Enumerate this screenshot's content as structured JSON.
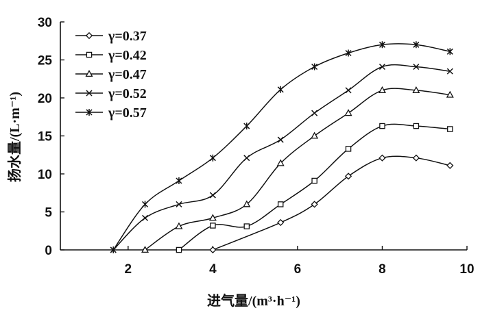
{
  "chart_data": {
    "type": "line",
    "xlabel": "进气量/(m³·h⁻¹)",
    "ylabel": "扬水量/(L·m⁻¹)",
    "xlim": [
      0.4,
      10
    ],
    "ylim": [
      0,
      30
    ],
    "xticks": [
      2,
      4,
      6,
      8,
      10
    ],
    "yticks": [
      0,
      5,
      10,
      15,
      20,
      25,
      30
    ],
    "grid": false,
    "legend_position": "top-left",
    "series": [
      {
        "name": "γ=0.37",
        "marker": "diamond",
        "points": [
          [
            4.0,
            0
          ],
          [
            5.6,
            3.6
          ],
          [
            6.4,
            6.0
          ],
          [
            7.2,
            9.7
          ],
          [
            8.0,
            12.1
          ],
          [
            8.8,
            12.1
          ],
          [
            9.6,
            11.1
          ]
        ]
      },
      {
        "name": "γ=0.42",
        "marker": "square",
        "points": [
          [
            3.2,
            0
          ],
          [
            4.0,
            3.2
          ],
          [
            4.8,
            3.1
          ],
          [
            5.6,
            6.0
          ],
          [
            6.4,
            9.1
          ],
          [
            7.2,
            13.3
          ],
          [
            8.0,
            16.3
          ],
          [
            8.8,
            16.3
          ],
          [
            9.6,
            15.9
          ]
        ]
      },
      {
        "name": "γ=0.47",
        "marker": "triangle",
        "points": [
          [
            2.4,
            0
          ],
          [
            3.2,
            3.1
          ],
          [
            4.0,
            4.2
          ],
          [
            4.8,
            6.0
          ],
          [
            5.6,
            11.4
          ],
          [
            6.4,
            15.0
          ],
          [
            7.2,
            18.0
          ],
          [
            8.0,
            21.0
          ],
          [
            8.8,
            21.0
          ],
          [
            9.6,
            20.4
          ]
        ]
      },
      {
        "name": "γ=0.52",
        "marker": "x",
        "points": [
          [
            1.65,
            0
          ],
          [
            2.4,
            4.2
          ],
          [
            3.2,
            6.0
          ],
          [
            4.0,
            7.2
          ],
          [
            4.8,
            12.1
          ],
          [
            5.6,
            14.5
          ],
          [
            6.4,
            18.0
          ],
          [
            7.2,
            21.0
          ],
          [
            8.0,
            24.1
          ],
          [
            8.8,
            24.1
          ],
          [
            9.6,
            23.5
          ]
        ]
      },
      {
        "name": "γ=0.57",
        "marker": "asterisk",
        "points": [
          [
            1.65,
            0
          ],
          [
            2.4,
            6.0
          ],
          [
            3.2,
            9.1
          ],
          [
            4.0,
            12.1
          ],
          [
            4.8,
            16.3
          ],
          [
            5.6,
            21.1
          ],
          [
            6.4,
            24.1
          ],
          [
            7.2,
            25.9
          ],
          [
            8.0,
            27.0
          ],
          [
            8.8,
            27.0
          ],
          [
            9.6,
            26.1
          ]
        ]
      }
    ]
  }
}
